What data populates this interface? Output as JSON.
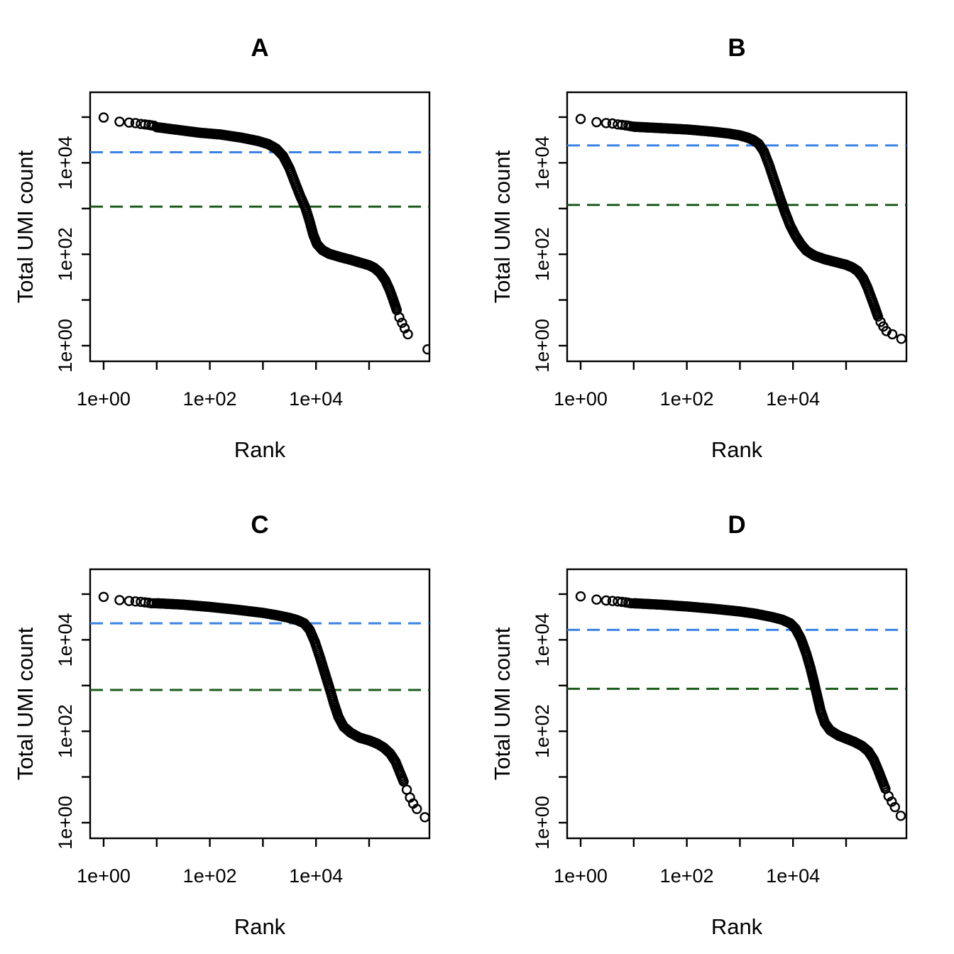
{
  "figure": {
    "background": "#ffffff",
    "layout": "2x2 grid of base-R style scatter plots",
    "marker": {
      "shape": "open-circle",
      "color": "#000000"
    }
  },
  "chart_data": [
    {
      "type": "scatter",
      "panel_label": "A",
      "title": "A",
      "xlabel": "Rank",
      "ylabel": "Total UMI count",
      "xscale": "log10",
      "yscale": "log10",
      "xlim_log10": [
        -0.25,
        6.14
      ],
      "ylim_log10": [
        -0.34,
        5.54
      ],
      "x_ticks": {
        "labels": [
          "1e+00",
          "1e+02",
          "1e+04"
        ],
        "label_log_positions": [
          0,
          2,
          4
        ],
        "minor_log_positions": [
          1,
          3,
          5
        ]
      },
      "y_ticks": {
        "labels": [
          "1e+00",
          "1e+02",
          "1e+04"
        ],
        "label_log_positions": [
          0,
          2,
          4
        ],
        "minor_log_positions": [
          1,
          3,
          5
        ]
      },
      "hlines": [
        {
          "name": "knee-line",
          "value": 17000,
          "color": "#3B82E6",
          "style": "dashed"
        },
        {
          "name": "inflection-line",
          "value": 1100,
          "color": "#1C5B1C",
          "style": "dashed"
        }
      ],
      "series": [
        {
          "name": "barcodes",
          "head_points_log10": [
            [
              0,
              4.99
            ],
            [
              0.3,
              4.9
            ],
            [
              0.48,
              4.88
            ],
            [
              0.6,
              4.87
            ],
            [
              0.7,
              4.85
            ],
            [
              0.78,
              4.84
            ],
            [
              0.85,
              4.83
            ],
            [
              0.9,
              4.82
            ],
            [
              0.95,
              4.81
            ]
          ],
          "band_log10": [
            [
              1.0,
              4.78
            ],
            [
              1.4,
              4.72
            ],
            [
              1.8,
              4.66
            ],
            [
              2.2,
              4.62
            ],
            [
              2.6,
              4.55
            ],
            [
              2.9,
              4.48
            ],
            [
              3.1,
              4.41
            ],
            [
              3.25,
              4.31
            ],
            [
              3.38,
              4.15
            ],
            [
              3.5,
              3.88
            ],
            [
              3.6,
              3.58
            ],
            [
              3.7,
              3.28
            ],
            [
              3.8,
              3.02
            ],
            [
              3.88,
              2.72
            ],
            [
              3.95,
              2.42
            ],
            [
              4.02,
              2.22
            ],
            [
              4.12,
              2.09
            ],
            [
              4.25,
              2.01
            ],
            [
              4.45,
              1.94
            ],
            [
              4.65,
              1.88
            ],
            [
              4.85,
              1.81
            ],
            [
              5.0,
              1.76
            ],
            [
              5.1,
              1.7
            ],
            [
              5.2,
              1.6
            ],
            [
              5.3,
              1.44
            ],
            [
              5.38,
              1.24
            ],
            [
              5.45,
              1.02
            ],
            [
              5.52,
              0.78
            ]
          ],
          "tail_points_log10": [
            [
              5.57,
              0.62
            ],
            [
              5.62,
              0.5
            ],
            [
              5.67,
              0.38
            ],
            [
              5.73,
              0.25
            ],
            [
              6.1,
              -0.08
            ]
          ]
        }
      ]
    },
    {
      "type": "scatter",
      "panel_label": "B",
      "title": "B",
      "xlabel": "Rank",
      "ylabel": "Total UMI count",
      "xscale": "log10",
      "yscale": "log10",
      "xlim_log10": [
        -0.25,
        6.14
      ],
      "ylim_log10": [
        -0.34,
        5.54
      ],
      "x_ticks": {
        "labels": [
          "1e+00",
          "1e+02",
          "1e+04"
        ],
        "label_log_positions": [
          0,
          2,
          4
        ],
        "minor_log_positions": [
          1,
          3,
          5
        ]
      },
      "y_ticks": {
        "labels": [
          "1e+00",
          "1e+02",
          "1e+04"
        ],
        "label_log_positions": [
          0,
          2,
          4
        ],
        "minor_log_positions": [
          1,
          3,
          5
        ]
      },
      "hlines": [
        {
          "name": "knee-line",
          "value": 24000,
          "color": "#3B82E6",
          "style": "dashed"
        },
        {
          "name": "inflection-line",
          "value": 1200,
          "color": "#1C5B1C",
          "style": "dashed"
        }
      ],
      "series": [
        {
          "name": "barcodes",
          "head_points_log10": [
            [
              0,
              4.96
            ],
            [
              0.3,
              4.89
            ],
            [
              0.48,
              4.87
            ],
            [
              0.6,
              4.86
            ],
            [
              0.7,
              4.84
            ],
            [
              0.78,
              4.83
            ],
            [
              0.85,
              4.82
            ],
            [
              0.9,
              4.81
            ],
            [
              0.95,
              4.8
            ]
          ],
          "band_log10": [
            [
              1.0,
              4.79
            ],
            [
              1.5,
              4.76
            ],
            [
              2.0,
              4.73
            ],
            [
              2.5,
              4.68
            ],
            [
              2.8,
              4.64
            ],
            [
              3.0,
              4.6
            ],
            [
              3.15,
              4.55
            ],
            [
              3.25,
              4.5
            ],
            [
              3.35,
              4.42
            ],
            [
              3.45,
              4.25
            ],
            [
              3.55,
              3.95
            ],
            [
              3.65,
              3.6
            ],
            [
              3.75,
              3.25
            ],
            [
              3.85,
              2.92
            ],
            [
              3.95,
              2.62
            ],
            [
              4.05,
              2.4
            ],
            [
              4.15,
              2.22
            ],
            [
              4.25,
              2.08
            ],
            [
              4.4,
              1.97
            ],
            [
              4.6,
              1.89
            ],
            [
              4.8,
              1.83
            ],
            [
              5.0,
              1.77
            ],
            [
              5.12,
              1.71
            ],
            [
              5.22,
              1.63
            ],
            [
              5.32,
              1.48
            ],
            [
              5.4,
              1.28
            ],
            [
              5.47,
              1.06
            ],
            [
              5.54,
              0.84
            ],
            [
              5.6,
              0.64
            ]
          ],
          "tail_points_log10": [
            [
              5.65,
              0.52
            ],
            [
              5.7,
              0.42
            ],
            [
              5.76,
              0.32
            ],
            [
              5.87,
              0.25
            ],
            [
              6.04,
              0.15
            ]
          ]
        }
      ]
    },
    {
      "type": "scatter",
      "panel_label": "C",
      "title": "C",
      "xlabel": "Rank",
      "ylabel": "Total UMI count",
      "xscale": "log10",
      "yscale": "log10",
      "xlim_log10": [
        -0.25,
        6.14
      ],
      "ylim_log10": [
        -0.34,
        5.54
      ],
      "x_ticks": {
        "labels": [
          "1e+00",
          "1e+02",
          "1e+04"
        ],
        "label_log_positions": [
          0,
          2,
          4
        ],
        "minor_log_positions": [
          1,
          3,
          5
        ]
      },
      "y_ticks": {
        "labels": [
          "1e+00",
          "1e+02",
          "1e+04"
        ],
        "label_log_positions": [
          0,
          2,
          4
        ],
        "minor_log_positions": [
          1,
          3,
          5
        ]
      },
      "hlines": [
        {
          "name": "knee-line",
          "value": 23000,
          "color": "#3B82E6",
          "style": "dashed"
        },
        {
          "name": "inflection-line",
          "value": 800,
          "color": "#1C5B1C",
          "style": "dashed"
        }
      ],
      "series": [
        {
          "name": "barcodes",
          "head_points_log10": [
            [
              0,
              4.94
            ],
            [
              0.3,
              4.87
            ],
            [
              0.48,
              4.85
            ],
            [
              0.6,
              4.84
            ],
            [
              0.7,
              4.83
            ],
            [
              0.78,
              4.82
            ],
            [
              0.85,
              4.81
            ],
            [
              0.9,
              4.8
            ],
            [
              0.95,
              4.8
            ]
          ],
          "band_log10": [
            [
              1.0,
              4.8
            ],
            [
              1.5,
              4.77
            ],
            [
              2.0,
              4.72
            ],
            [
              2.5,
              4.66
            ],
            [
              3.0,
              4.59
            ],
            [
              3.3,
              4.53
            ],
            [
              3.5,
              4.48
            ],
            [
              3.65,
              4.43
            ],
            [
              3.78,
              4.36
            ],
            [
              3.88,
              4.22
            ],
            [
              3.98,
              3.95
            ],
            [
              4.08,
              3.6
            ],
            [
              4.18,
              3.22
            ],
            [
              4.26,
              2.92
            ],
            [
              4.34,
              2.6
            ],
            [
              4.42,
              2.32
            ],
            [
              4.52,
              2.1
            ],
            [
              4.65,
              1.97
            ],
            [
              4.82,
              1.86
            ],
            [
              5.0,
              1.8
            ],
            [
              5.15,
              1.73
            ],
            [
              5.28,
              1.64
            ],
            [
              5.4,
              1.51
            ],
            [
              5.5,
              1.33
            ],
            [
              5.58,
              1.1
            ],
            [
              5.65,
              0.9
            ]
          ],
          "tail_points_log10": [
            [
              5.71,
              0.72
            ],
            [
              5.77,
              0.55
            ],
            [
              5.83,
              0.42
            ],
            [
              5.9,
              0.3
            ],
            [
              6.05,
              0.12
            ]
          ]
        }
      ]
    },
    {
      "type": "scatter",
      "panel_label": "D",
      "title": "D",
      "xlabel": "Rank",
      "ylabel": "Total UMI count",
      "xscale": "log10",
      "yscale": "log10",
      "xlim_log10": [
        -0.25,
        6.14
      ],
      "ylim_log10": [
        -0.34,
        5.54
      ],
      "x_ticks": {
        "labels": [
          "1e+00",
          "1e+02",
          "1e+04"
        ],
        "label_log_positions": [
          0,
          2,
          4
        ],
        "minor_log_positions": [
          1,
          3,
          5
        ]
      },
      "y_ticks": {
        "labels": [
          "1e+00",
          "1e+02",
          "1e+04"
        ],
        "label_log_positions": [
          0,
          2,
          4
        ],
        "minor_log_positions": [
          1,
          3,
          5
        ]
      },
      "hlines": [
        {
          "name": "knee-line",
          "value": 16500,
          "color": "#3B82E6",
          "style": "dashed"
        },
        {
          "name": "inflection-line",
          "value": 850,
          "color": "#1C5B1C",
          "style": "dashed"
        }
      ],
      "series": [
        {
          "name": "barcodes",
          "head_points_log10": [
            [
              0,
              4.95
            ],
            [
              0.3,
              4.88
            ],
            [
              0.48,
              4.86
            ],
            [
              0.6,
              4.85
            ],
            [
              0.7,
              4.84
            ],
            [
              0.78,
              4.83
            ],
            [
              0.85,
              4.82
            ],
            [
              0.9,
              4.81
            ],
            [
              0.95,
              4.8
            ]
          ],
          "band_log10": [
            [
              1.0,
              4.8
            ],
            [
              1.5,
              4.77
            ],
            [
              2.0,
              4.73
            ],
            [
              2.5,
              4.68
            ],
            [
              3.0,
              4.62
            ],
            [
              3.3,
              4.57
            ],
            [
              3.6,
              4.5
            ],
            [
              3.8,
              4.44
            ],
            [
              3.95,
              4.36
            ],
            [
              4.05,
              4.24
            ],
            [
              4.15,
              4.02
            ],
            [
              4.25,
              3.7
            ],
            [
              4.33,
              3.38
            ],
            [
              4.4,
              3.05
            ],
            [
              4.46,
              2.75
            ],
            [
              4.52,
              2.45
            ],
            [
              4.6,
              2.18
            ],
            [
              4.7,
              2.02
            ],
            [
              4.85,
              1.91
            ],
            [
              5.0,
              1.84
            ],
            [
              5.15,
              1.77
            ],
            [
              5.3,
              1.68
            ],
            [
              5.42,
              1.56
            ],
            [
              5.52,
              1.38
            ],
            [
              5.6,
              1.16
            ],
            [
              5.68,
              0.92
            ],
            [
              5.74,
              0.74
            ]
          ],
          "tail_points_log10": [
            [
              5.8,
              0.58
            ],
            [
              5.86,
              0.46
            ],
            [
              5.92,
              0.34
            ],
            [
              6.03,
              0.15
            ]
          ]
        }
      ]
    }
  ]
}
